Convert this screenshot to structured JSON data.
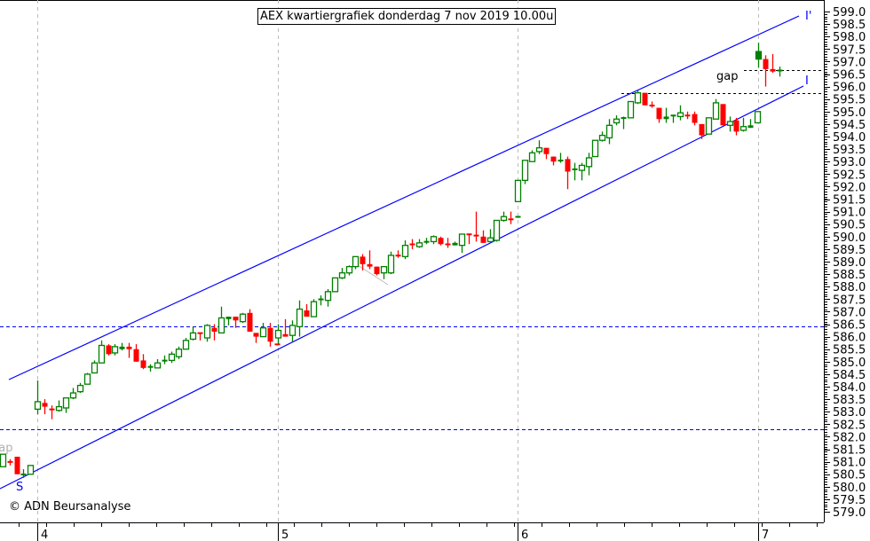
{
  "chart_data": {
    "type": "candlestick",
    "title": "AEX kwartiergrafiek donderdag 7 nov 2019  10.00u",
    "xlabel": "",
    "ylabel": "",
    "ylim": [
      579.0,
      599.0
    ],
    "yticks": [
      "599.0",
      "598.5",
      "598.0",
      "597.5",
      "597.0",
      "596.5",
      "596.0",
      "595.5",
      "595.0",
      "594.5",
      "594.0",
      "593.5",
      "593.0",
      "592.5",
      "592.0",
      "591.5",
      "591.0",
      "590.5",
      "590.0",
      "589.5",
      "589.0",
      "588.5",
      "588.0",
      "587.5",
      "587.0",
      "586.5",
      "586.0",
      "585.5",
      "585.0",
      "584.5",
      "584.0",
      "583.5",
      "583.0",
      "582.5",
      "582.0",
      "581.5",
      "581.0",
      "580.5",
      "580.0",
      "579.5",
      "579.0"
    ],
    "xticks": [
      "4",
      "5",
      "6",
      "7"
    ],
    "colors": {
      "up": "#008000",
      "down": "#ff0000",
      "channel": "#0000ff",
      "support": "#0000ff",
      "gap": "#000000"
    },
    "horizontal_levels": [
      586.4,
      582.3
    ],
    "gap_levels": [
      595.75,
      596.65
    ],
    "sessions": [
      {
        "day": "pre",
        "ohlc": [
          [
            580.8,
            581.3,
            580.8,
            581.3
          ],
          [
            581.0,
            581.1,
            580.85,
            580.95
          ],
          [
            581.2,
            581.2,
            580.5,
            580.5
          ],
          [
            580.45,
            580.7,
            580.35,
            580.5
          ],
          [
            580.5,
            580.85,
            580.5,
            580.85
          ]
        ]
      },
      {
        "day": "4",
        "ohlc": [
          [
            583.1,
            584.25,
            582.9,
            583.4
          ],
          [
            583.35,
            583.5,
            582.9,
            583.2
          ],
          [
            583.1,
            583.25,
            582.7,
            583.05
          ],
          [
            583.05,
            583.45,
            583.0,
            583.2
          ],
          [
            583.15,
            583.55,
            582.95,
            583.55
          ],
          [
            583.55,
            583.95,
            583.5,
            583.75
          ],
          [
            583.8,
            584.15,
            583.75,
            584.05
          ],
          [
            584.1,
            584.55,
            584.1,
            584.5
          ],
          [
            584.55,
            585.05,
            584.55,
            584.95
          ],
          [
            584.95,
            585.85,
            584.95,
            585.65
          ],
          [
            585.65,
            585.7,
            585.25,
            585.3
          ],
          [
            585.35,
            585.7,
            585.25,
            585.6
          ],
          [
            585.5,
            585.75,
            585.45,
            585.6
          ],
          [
            585.6,
            585.75,
            585.15,
            585.5
          ],
          [
            585.5,
            585.7,
            585.0,
            585.0
          ],
          [
            585.05,
            585.3,
            584.7,
            584.75
          ],
          [
            584.75,
            584.9,
            584.6,
            584.8
          ],
          [
            584.75,
            585.1,
            584.75,
            584.95
          ],
          [
            585.0,
            585.25,
            584.9,
            585.05
          ],
          [
            585.05,
            585.4,
            584.95,
            585.3
          ],
          [
            585.2,
            585.6,
            585.1,
            585.5
          ],
          [
            585.5,
            585.95,
            585.5,
            585.85
          ],
          [
            585.9,
            586.4,
            585.85,
            586.15
          ],
          [
            586.15,
            586.15,
            585.85,
            586.1
          ],
          [
            585.95,
            586.5,
            585.8,
            586.45
          ],
          [
            586.35,
            586.5,
            585.85,
            586.2
          ],
          [
            586.15,
            587.2,
            586.15,
            586.75
          ],
          [
            586.7,
            586.8,
            586.45,
            586.8
          ],
          [
            586.8,
            586.8,
            586.35,
            586.65
          ],
          [
            586.6,
            586.95,
            586.55,
            586.9
          ],
          [
            586.95,
            587.1,
            586.2,
            586.2
          ],
          [
            586.15,
            586.15,
            585.75,
            586.0
          ],
          [
            586.0,
            586.55,
            586.0,
            586.35
          ],
          [
            586.35,
            586.55,
            585.6,
            585.8
          ],
          [
            585.7,
            585.7,
            585.65,
            585.65
          ]
        ]
      },
      {
        "day": "5",
        "ohlc": [
          [
            585.95,
            586.5,
            585.7,
            586.25
          ],
          [
            586.1,
            586.7,
            586.0,
            586.0
          ],
          [
            586.05,
            586.65,
            585.8,
            586.45
          ],
          [
            586.4,
            587.45,
            586.0,
            587.1
          ],
          [
            587.05,
            587.3,
            586.8,
            586.8
          ],
          [
            586.8,
            587.5,
            586.8,
            587.4
          ],
          [
            587.45,
            587.65,
            587.25,
            587.5
          ],
          [
            587.45,
            587.9,
            587.2,
            587.8
          ],
          [
            587.8,
            588.35,
            587.8,
            588.35
          ],
          [
            588.35,
            588.75,
            588.3,
            588.55
          ],
          [
            588.55,
            588.85,
            588.45,
            588.8
          ],
          [
            588.8,
            589.2,
            588.7,
            589.2
          ],
          [
            589.2,
            589.3,
            588.65,
            588.9
          ],
          [
            588.9,
            589.45,
            588.7,
            588.8
          ],
          [
            588.8,
            588.8,
            588.45,
            588.5
          ],
          [
            588.55,
            588.8,
            588.3,
            588.8
          ],
          [
            588.55,
            589.4,
            588.5,
            589.25
          ],
          [
            589.25,
            589.45,
            589.15,
            589.2
          ],
          [
            589.2,
            589.85,
            589.1,
            589.65
          ],
          [
            589.7,
            589.9,
            589.5,
            589.65
          ],
          [
            589.6,
            589.9,
            589.55,
            589.75
          ],
          [
            589.75,
            589.95,
            589.7,
            589.8
          ],
          [
            589.8,
            590.05,
            589.7,
            590.0
          ],
          [
            589.95,
            590.0,
            589.65,
            589.7
          ],
          [
            589.7,
            589.95,
            589.55,
            589.65
          ],
          [
            589.65,
            589.8,
            589.65,
            589.75
          ],
          [
            589.65,
            590.1,
            589.35,
            590.1
          ],
          [
            590.1,
            590.1,
            589.7,
            590.05
          ],
          [
            590.05,
            591.0,
            589.8,
            590.0
          ],
          [
            590.0,
            590.25,
            589.75,
            589.75
          ],
          [
            589.8,
            590.3,
            589.8,
            589.95
          ],
          [
            589.85,
            590.65,
            589.8,
            590.65
          ],
          [
            590.65,
            591.0,
            590.6,
            590.8
          ],
          [
            590.7,
            591.0,
            590.5,
            590.65
          ],
          [
            590.75,
            590.8,
            590.75,
            590.8
          ]
        ]
      },
      {
        "day": "6",
        "ohlc": [
          [
            591.4,
            592.25,
            591.4,
            592.25
          ],
          [
            592.25,
            593.05,
            592.1,
            593.05
          ],
          [
            593.0,
            593.45,
            593.0,
            593.35
          ],
          [
            593.4,
            593.85,
            593.3,
            593.55
          ],
          [
            593.55,
            593.55,
            593.1,
            593.3
          ],
          [
            593.2,
            593.2,
            592.85,
            593.0
          ],
          [
            593.0,
            593.35,
            592.95,
            593.05
          ],
          [
            593.1,
            593.2,
            591.9,
            592.6
          ],
          [
            592.65,
            592.95,
            592.25,
            592.7
          ],
          [
            592.65,
            592.95,
            592.25,
            592.85
          ],
          [
            592.8,
            593.35,
            592.45,
            593.15
          ],
          [
            593.2,
            593.85,
            593.2,
            593.85
          ],
          [
            593.85,
            594.2,
            593.8,
            594.05
          ],
          [
            593.95,
            594.7,
            593.7,
            594.45
          ],
          [
            594.55,
            594.85,
            594.45,
            594.7
          ],
          [
            594.7,
            594.8,
            594.3,
            594.75
          ],
          [
            594.75,
            595.4,
            594.75,
            595.4
          ],
          [
            595.35,
            595.85,
            595.3,
            595.75
          ],
          [
            595.75,
            595.75,
            595.25,
            595.25
          ],
          [
            595.25,
            595.4,
            595.15,
            595.2
          ],
          [
            595.15,
            595.15,
            594.55,
            594.7
          ],
          [
            594.7,
            595.15,
            594.55,
            594.8
          ],
          [
            594.8,
            594.85,
            594.55,
            594.85
          ],
          [
            594.8,
            595.25,
            594.65,
            594.95
          ],
          [
            594.85,
            595.0,
            594.7,
            594.8
          ],
          [
            594.9,
            595.0,
            594.45,
            594.55
          ],
          [
            594.5,
            594.5,
            593.9,
            594.05
          ],
          [
            594.1,
            594.75,
            594.1,
            594.75
          ],
          [
            594.7,
            595.5,
            594.7,
            595.35
          ],
          [
            595.3,
            595.3,
            594.45,
            594.45
          ],
          [
            594.45,
            594.8,
            594.2,
            594.6
          ],
          [
            594.65,
            594.75,
            594.05,
            594.2
          ],
          [
            594.25,
            594.75,
            594.2,
            594.4
          ],
          [
            594.35,
            594.7,
            594.35,
            594.45
          ],
          [
            594.55,
            595.0,
            594.55,
            595.0
          ]
        ]
      },
      {
        "day": "7",
        "ohlc": [
          [
            597.1,
            597.75,
            596.75,
            597.4
          ],
          [
            597.1,
            597.25,
            596.0,
            596.7
          ],
          [
            596.7,
            597.3,
            596.55,
            596.6
          ],
          [
            596.6,
            596.8,
            596.4,
            596.65
          ]
        ]
      }
    ],
    "annotations": {
      "upper_channel_label": "I'",
      "lower_channel_label": "I",
      "gap_label": "gap",
      "old_gap_label": "gap",
      "support_label": "S"
    },
    "copyright": "© ADN Beursanalyse"
  }
}
